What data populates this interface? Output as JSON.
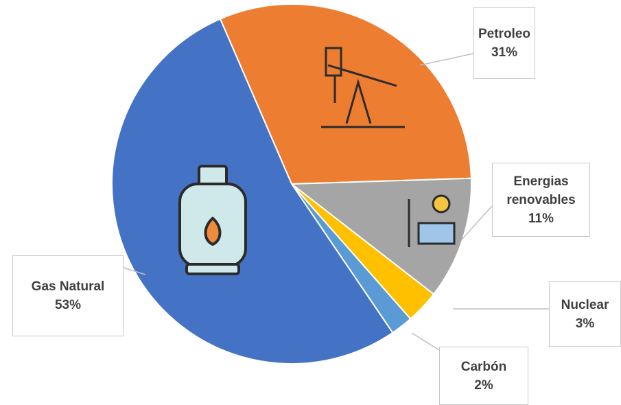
{
  "chart_data": {
    "type": "pie",
    "categories": [
      "Petroleo",
      "Energias renovables",
      "Nuclear",
      "Carbón",
      "Gas Natural"
    ],
    "values": [
      31,
      11,
      3,
      2,
      53
    ],
    "value_labels": [
      "31%",
      "11%",
      "3%",
      "2%",
      "53%"
    ],
    "colors": [
      "#ED7D31",
      "#A5A5A5",
      "#FFC000",
      "#5B9BD5",
      "#4472C4"
    ]
  }
}
